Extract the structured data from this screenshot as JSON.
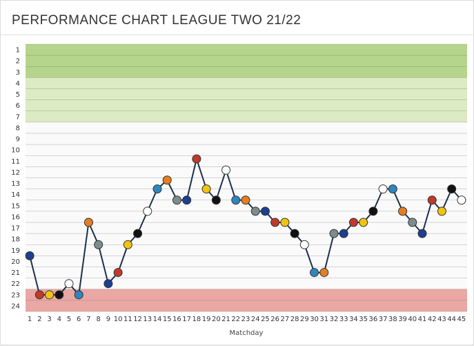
{
  "title": "PERFORMANCE CHART LEAGUE TWO 21/22",
  "chart_data": {
    "type": "line",
    "title": "PERFORMANCE CHART LEAGUE TWO 21/22",
    "xlabel": "Matchday",
    "ylabel": "",
    "x": [
      1,
      2,
      3,
      4,
      5,
      6,
      7,
      8,
      9,
      10,
      11,
      12,
      13,
      14,
      15,
      16,
      17,
      18,
      19,
      20,
      21,
      22,
      23,
      24,
      25,
      26,
      27,
      28,
      29,
      30,
      31,
      32,
      33,
      34,
      35,
      36,
      37,
      38,
      39,
      40,
      41,
      42,
      43,
      44,
      45
    ],
    "y": [
      19.5,
      23,
      23,
      23,
      22,
      23,
      16.5,
      18.5,
      22,
      21,
      18.5,
      17.5,
      15.5,
      13.5,
      12.7,
      14.5,
      14.5,
      10.8,
      13.5,
      14.5,
      11.8,
      14.5,
      14.5,
      15.5,
      15.5,
      16.5,
      16.5,
      17.5,
      18.5,
      21,
      21,
      17.5,
      17.5,
      16.5,
      16.5,
      15.5,
      13.5,
      13.5,
      15.5,
      16.5,
      17.5,
      14.5,
      15.5,
      13.5,
      14.5
    ],
    "xlim": [
      1,
      45
    ],
    "ylim": [
      1,
      24
    ],
    "y_inverted": true,
    "ticks_y": [
      "1",
      "2",
      "3",
      "4",
      "5",
      "6",
      "7",
      "8",
      "9",
      "10",
      "11",
      "12",
      "13",
      "14",
      "15",
      "16",
      "17",
      "18",
      "19",
      "20",
      "21",
      "22",
      "23",
      "24"
    ],
    "ticks_x": [
      "1",
      "2",
      "3",
      "4",
      "5",
      "6",
      "7",
      "8",
      "9",
      "10",
      "11",
      "12",
      "13",
      "14",
      "15",
      "16",
      "17",
      "18",
      "19",
      "20",
      "21",
      "22",
      "23",
      "24",
      "25",
      "26",
      "27",
      "28",
      "29",
      "30",
      "31",
      "32",
      "33",
      "34",
      "35",
      "36",
      "37",
      "38",
      "39",
      "40",
      "41",
      "42",
      "43",
      "44",
      "45"
    ],
    "bands": [
      {
        "from": 1,
        "to": 3,
        "color": "#b5d58a"
      },
      {
        "from": 4,
        "to": 7,
        "color": "#dcebc3"
      },
      {
        "from": 23,
        "to": 24,
        "color": "#e9a8a3"
      }
    ],
    "line_color": "#1c2e4a",
    "marker_colors": [
      "#1c3f8f",
      "#c0392b",
      "#f1c40f",
      "#111111",
      "#ffffff",
      "#2e86c1",
      "#e67e22",
      "#7f8c8d"
    ],
    "grid": true
  }
}
